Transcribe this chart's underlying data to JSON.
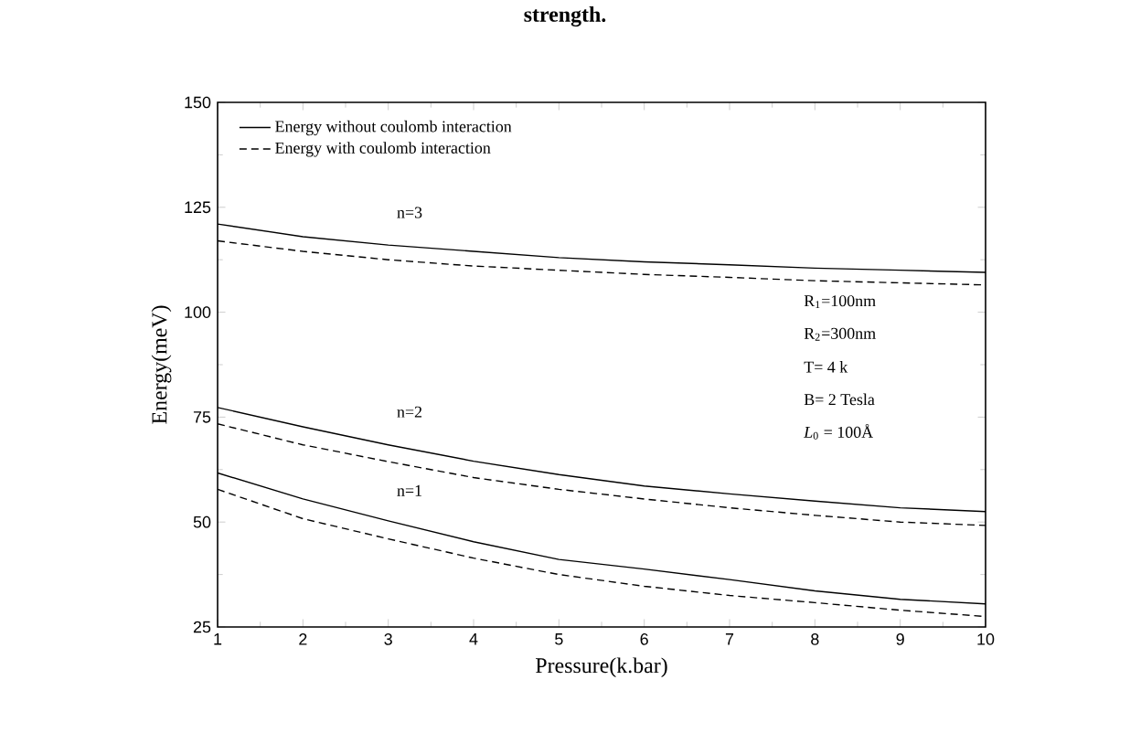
{
  "chart_data": {
    "type": "line",
    "title": "strength.",
    "xlabel": "Pressure(k.bar)",
    "ylabel": "Energy(meV)",
    "x": [
      1,
      2,
      3,
      4,
      5,
      6,
      7,
      8,
      9,
      10
    ],
    "series": [
      {
        "name": "Energy without coulomb interaction",
        "color": "#000000",
        "line_style": "solid",
        "values": [
          121,
          118,
          116,
          114.5,
          113,
          112,
          111.3,
          110.5,
          110,
          109.5
        ]
      },
      {
        "name": "Energy with coulomb interaction",
        "color": "#000000",
        "line_style": "dashed",
        "values": [
          117,
          114.5,
          112.5,
          111,
          110,
          109,
          108.3,
          107.5,
          107,
          106.5
        ]
      },
      {
        "color": "#000000",
        "line_style": "solid",
        "values": [
          77.3,
          72.7,
          68.4,
          64.5,
          61.3,
          58.6,
          56.7,
          55,
          53.4,
          52.5
        ]
      },
      {
        "color": "#000000",
        "line_style": "dashed",
        "values": [
          73.4,
          68.4,
          64.4,
          60.6,
          57.8,
          55.5,
          53.4,
          51.6,
          50,
          49.2
        ]
      },
      {
        "color": "#000000",
        "line_style": "solid",
        "values": [
          61.7,
          55.5,
          50.3,
          45.3,
          41.1,
          38.8,
          36.3,
          33.6,
          31.6,
          30.5
        ]
      },
      {
        "color": "#000000",
        "line_style": "dashed",
        "values": [
          57.8,
          50.8,
          46,
          41.4,
          37.5,
          34.7,
          32.5,
          30.8,
          29,
          27.5
        ]
      }
    ],
    "xlim": [
      1,
      10
    ],
    "ylim": [
      25,
      150
    ],
    "xticks": [
      1,
      2,
      3,
      4,
      5,
      6,
      7,
      8,
      9,
      10
    ],
    "yticks": [
      25,
      50,
      75,
      100,
      125,
      150
    ],
    "legend": "top left",
    "marker": "none",
    "grid": false,
    "annotations": [
      "n=3",
      "n=2",
      "n=1",
      "R$_{1}$=100nm",
      "R$_{2}$=300nm",
      "T= 4 k",
      "B= 2 Tesla",
      "*L*$_{0}$ = 100Å"
    ]
  }
}
